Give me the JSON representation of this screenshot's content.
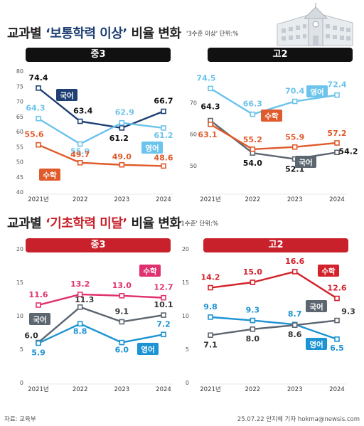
{
  "sections": [
    {
      "title_prefix": "교과별 ",
      "title_highlight": "‘보통학력 이상’",
      "title_suffix": " 비율 변화",
      "unit": "'3수준 이상' 단위:%"
    },
    {
      "title_prefix": "교과별 ",
      "title_highlight": "‘기초학력 미달’",
      "title_suffix": " 비율 변화",
      "unit": "'1수준' 단위:%"
    }
  ],
  "source": "자료: 교육부",
  "credit": "25.07.22 안지혜 기자 hokma@newsis.com",
  "colors": {
    "navy": "#1e3f73",
    "light_blue": "#6cc3ec",
    "orange": "#e05a2b",
    "gray": "#5c6670",
    "pink": "#e0306f",
    "red": "#d4222b",
    "sky": "#1c93d3"
  },
  "chart_data": [
    {
      "type": "line",
      "panel": "중3",
      "section": 0,
      "categories": [
        "2021년",
        "2022",
        "2023",
        "2024"
      ],
      "ylim": [
        40,
        80
      ],
      "yticks": [
        40,
        45,
        50,
        55,
        60,
        65,
        70,
        75,
        80
      ],
      "series": [
        {
          "name": "국어",
          "values": [
            74.4,
            63.4,
            61.2,
            66.7
          ],
          "labels": [
            "74.4",
            "63.4",
            "61.2",
            "66.7"
          ],
          "color": "#1e3f73",
          "label_color": "#111111"
        },
        {
          "name": "영어",
          "values": [
            64.3,
            55.9,
            62.9,
            61.2
          ],
          "labels": [
            "64.3",
            "55.9",
            "62.9",
            "61.2"
          ],
          "color": "#6cc3ec",
          "label_color": "#6cc3ec"
        },
        {
          "name": "수학",
          "values": [
            55.6,
            49.7,
            49.0,
            48.6
          ],
          "labels": [
            "55.6",
            "49.7",
            "49.0",
            "48.6"
          ],
          "color": "#e05a2b",
          "label_color": "#e05a2b"
        }
      ]
    },
    {
      "type": "line",
      "panel": "고2",
      "section": 0,
      "categories": [
        "2021년",
        "2022",
        "2023",
        "2024"
      ],
      "ylim": [
        45,
        80
      ],
      "yticks": [
        50,
        60,
        70
      ],
      "series": [
        {
          "name": "영어",
          "values": [
            74.5,
            66.3,
            70.4,
            72.4
          ],
          "labels": [
            "74.5",
            "66.3",
            "70.4",
            "72.4"
          ],
          "color": "#6cc3ec",
          "label_color": "#6cc3ec"
        },
        {
          "name": "국어",
          "values": [
            64.3,
            54.0,
            52.1,
            54.2
          ],
          "labels": [
            "64.3",
            "54.0",
            "52.1",
            "54.2"
          ],
          "color": "#5c6670",
          "label_color": "#111111"
        },
        {
          "name": "수학",
          "values": [
            63.1,
            55.2,
            55.9,
            57.2
          ],
          "labels": [
            "63.1",
            "55.2",
            "55.9",
            "57.2"
          ],
          "color": "#e05a2b",
          "label_color": "#e05a2b"
        }
      ]
    },
    {
      "type": "line",
      "panel": "중3",
      "section": 1,
      "categories": [
        "2021년",
        "2022",
        "2023",
        "2024"
      ],
      "ylim": [
        0,
        20
      ],
      "yticks": [
        0,
        5,
        10,
        15,
        20
      ],
      "series": [
        {
          "name": "수학",
          "values": [
            11.6,
            13.2,
            13.0,
            12.7
          ],
          "labels": [
            "11.6",
            "13.2",
            "13.0",
            "12.7"
          ],
          "color": "#e0306f",
          "label_color": "#e0306f"
        },
        {
          "name": "국어",
          "values": [
            6.0,
            11.3,
            9.1,
            10.1
          ],
          "labels": [
            "6.0",
            "11.3",
            "9.1",
            "10.1"
          ],
          "color": "#5c6670",
          "label_color": "#333333"
        },
        {
          "name": "영어",
          "values": [
            5.9,
            8.8,
            6.0,
            7.2
          ],
          "labels": [
            "5.9",
            "8.8",
            "6.0",
            "7.2"
          ],
          "color": "#1c93d3",
          "label_color": "#1c93d3"
        }
      ]
    },
    {
      "type": "line",
      "panel": "고2",
      "section": 1,
      "categories": [
        "2021년",
        "2022",
        "2023",
        "2024"
      ],
      "ylim": [
        0,
        20
      ],
      "yticks": [
        0,
        5,
        10,
        15,
        20
      ],
      "series": [
        {
          "name": "수학",
          "values": [
            14.2,
            15.0,
            16.6,
            12.6
          ],
          "labels": [
            "14.2",
            "15.0",
            "16.6",
            "12.6"
          ],
          "color": "#d4222b",
          "label_color": "#d4222b"
        },
        {
          "name": "영어",
          "values": [
            9.8,
            9.3,
            8.7,
            6.5
          ],
          "labels": [
            "9.8",
            "9.3",
            "8.7",
            "6.5"
          ],
          "color": "#1c93d3",
          "label_color": "#1c93d3"
        },
        {
          "name": "국어",
          "values": [
            7.1,
            8.0,
            8.6,
            9.3
          ],
          "labels": [
            "7.1",
            "8.0",
            "8.6",
            "9.3"
          ],
          "color": "#5c6670",
          "label_color": "#333333"
        }
      ]
    }
  ]
}
